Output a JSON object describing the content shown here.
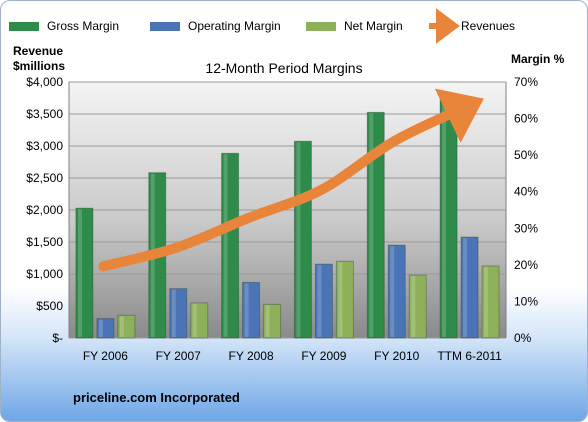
{
  "legend": [
    {
      "key": "gross",
      "label": "Gross Margin"
    },
    {
      "key": "operating",
      "label": "Operating Margin"
    },
    {
      "key": "net",
      "label": "Net Margin"
    },
    {
      "key": "revenue",
      "label": "Revenues"
    }
  ],
  "footer": "priceline.com Incorporated",
  "colors": {
    "gross": "#2e8b4a",
    "operating": "#4a74b6",
    "net": "#8fb05a",
    "revenue": "#e8853a",
    "plot_bg_top": "#f2f2f2",
    "plot_bg_bottom": "#8c8c8c"
  },
  "chart_data": {
    "type": "bar",
    "title": "12-Month Period Margins",
    "categories": [
      "FY 2006",
      "FY 2007",
      "FY 2008",
      "FY 2009",
      "FY 2010",
      "TTM 6-2011"
    ],
    "y_left": {
      "label_line1": "Revenue",
      "label_line2": "$millions",
      "range": [
        0,
        4000
      ],
      "ticks": [
        0,
        500,
        1000,
        1500,
        2000,
        2500,
        3000,
        3500,
        4000
      ],
      "tick_labels": [
        "$-",
        "$500",
        "$1,000",
        "$1,500",
        "$2,000",
        "$2,500",
        "$3,000",
        "$3,500",
        "$4,000"
      ]
    },
    "y_right": {
      "label": "Margin %",
      "range": [
        0,
        70
      ],
      "ticks": [
        0,
        10,
        20,
        30,
        40,
        50,
        60,
        70
      ],
      "tick_labels": [
        "0%",
        "10%",
        "20%",
        "30%",
        "40%",
        "50%",
        "60%",
        "70%"
      ]
    },
    "series": [
      {
        "key": "gross",
        "name": "Gross Margin",
        "axis": "right",
        "kind": "bar",
        "values": [
          35.5,
          45.2,
          50.5,
          53.8,
          61.7,
          65.8
        ]
      },
      {
        "key": "operating",
        "name": "Operating Margin",
        "axis": "right",
        "kind": "bar",
        "values": [
          5.3,
          13.5,
          15.2,
          20.2,
          25.4,
          27.6
        ]
      },
      {
        "key": "net",
        "name": "Net Margin",
        "axis": "right",
        "kind": "bar",
        "values": [
          6.2,
          9.6,
          9.2,
          21.0,
          17.2,
          19.7
        ]
      },
      {
        "key": "revenue",
        "name": "Revenues",
        "axis": "left",
        "kind": "line",
        "values": [
          1120,
          1410,
          1880,
          2320,
          3080,
          3620
        ]
      }
    ],
    "grid": true,
    "legend_position": "top"
  }
}
